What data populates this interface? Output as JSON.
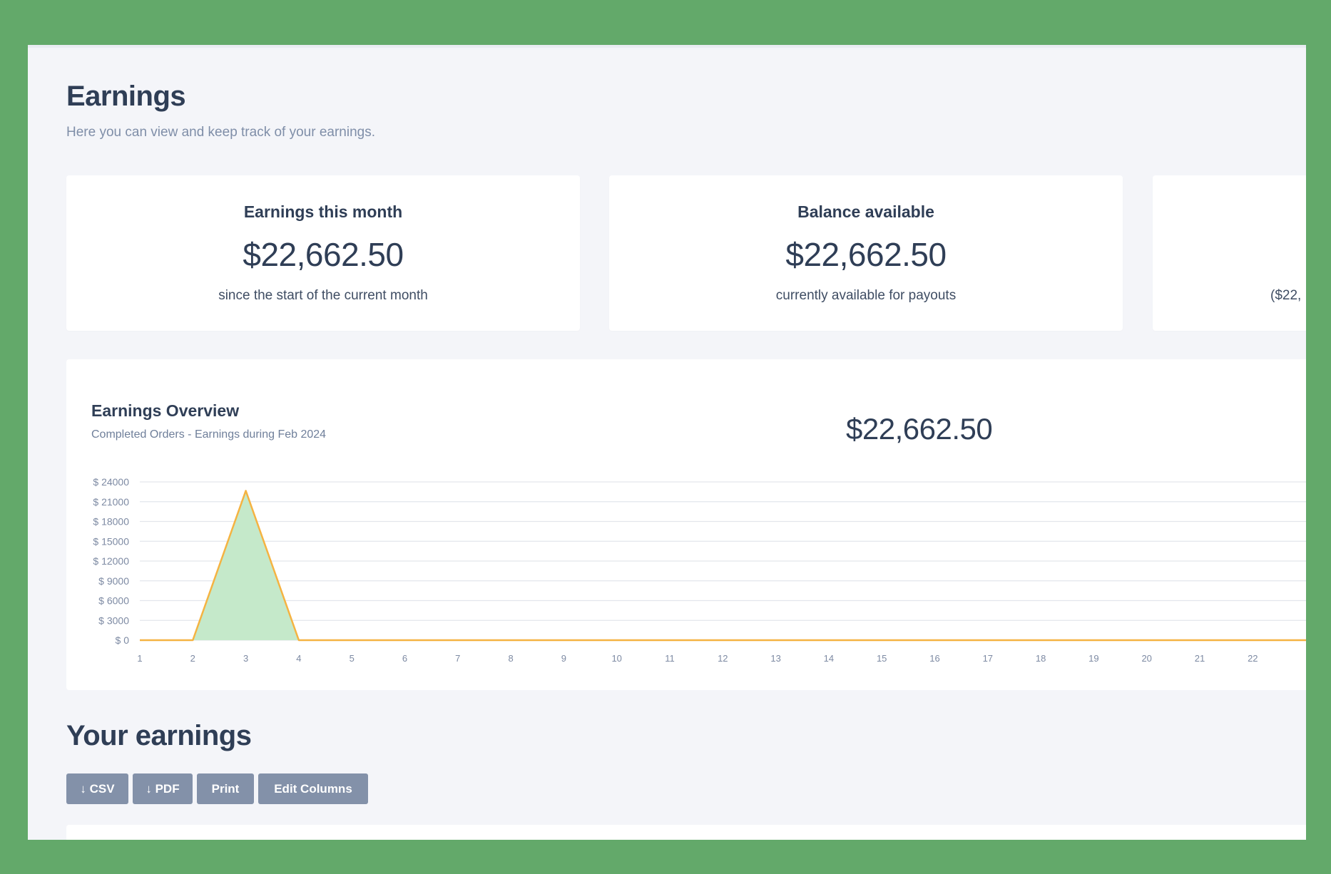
{
  "page": {
    "title": "Earnings",
    "subtitle": "Here you can view and keep track of your earnings."
  },
  "stats": [
    {
      "label": "Earnings this month",
      "value": "$22,662.50",
      "desc": "since the start of the current month"
    },
    {
      "label": "Balance available",
      "value": "$22,662.50",
      "desc": "currently available for payouts"
    },
    {
      "label": "",
      "value": "",
      "desc": "($22,"
    }
  ],
  "overview": {
    "title": "Earnings Overview",
    "subtitle": "Completed Orders - Earnings during Feb 2024",
    "total": "$22,662.50"
  },
  "colors": {
    "background": "#63a96a",
    "page": "#f4f5f9",
    "line": "#f5b342",
    "area": "#c5e9ca",
    "button": "#8391a9",
    "text": "#2f3e56"
  },
  "chart_data": {
    "type": "area",
    "title": "",
    "xlabel": "",
    "ylabel": "",
    "x": [
      1,
      2,
      3,
      4,
      5,
      6,
      7,
      8,
      9,
      10,
      11,
      12,
      13,
      14,
      15,
      16,
      17,
      18,
      19,
      20,
      21,
      22
    ],
    "series": [
      {
        "values": [
          0,
          0,
          22662.5,
          0,
          0,
          0,
          0,
          0,
          0,
          0,
          0,
          0,
          0,
          0,
          0,
          0,
          0,
          0,
          0,
          0,
          0,
          0
        ]
      }
    ],
    "ylim": [
      0,
      24000
    ],
    "y_ticks": [
      0,
      3000,
      6000,
      9000,
      12000,
      15000,
      18000,
      21000,
      24000
    ],
    "y_tick_labels": [
      "$ 0",
      "$ 3000",
      "$ 6000",
      "$ 9000",
      "$ 12000",
      "$ 15000",
      "$ 18000",
      "$ 21000",
      "$ 24000"
    ],
    "x_tick_labels": [
      "1",
      "2",
      "3",
      "4",
      "5",
      "6",
      "7",
      "8",
      "9",
      "10",
      "11",
      "12",
      "13",
      "14",
      "15",
      "16",
      "17",
      "18",
      "19",
      "20",
      "21",
      "22"
    ],
    "grid": true,
    "line_color": "#f5b342",
    "fill_color": "#c5e9ca"
  },
  "section": {
    "title": "Your earnings"
  },
  "toolbar": {
    "csv_label": "↓ CSV",
    "pdf_label": "↓ PDF",
    "print_label": "Print",
    "columns_label": "Edit Columns"
  }
}
